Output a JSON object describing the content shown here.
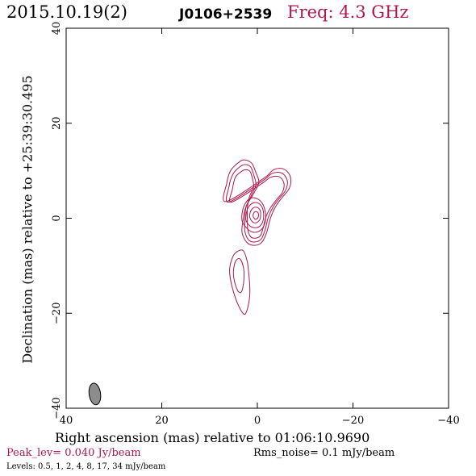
{
  "header": {
    "date": "2015.10.19(2)",
    "source": "J0106+2539",
    "freq": "Freq: 4.3 GHz"
  },
  "footer": {
    "peak": "Peak_lev=  0.040 Jy/beam",
    "rms": "Rms_noise=  0.1 mJy/beam",
    "levels": "Levels: 0.5,    1,    2,    4,    8,   17,   34 mJy/beam"
  },
  "colors": {
    "contour": "#b0184a",
    "beam_fill": "#8c8c8c",
    "frame": "#000000"
  },
  "chart_data": {
    "type": "contour",
    "xlabel": "Right ascension (mas) relative to 01:06:10.9690",
    "ylabel": "Declination (mas) relative to +25:39:30.495",
    "xlim": [
      40,
      -40
    ],
    "ylim": [
      -40,
      40
    ],
    "xticks": [
      40,
      20,
      0,
      -20,
      -40
    ],
    "xtick_labels": [
      "40",
      "20",
      "0",
      "−20",
      "−40"
    ],
    "yticks": [
      -40,
      -20,
      0,
      20,
      40
    ],
    "ytick_labels": [
      "−40",
      "−20",
      "0",
      "20",
      "40"
    ],
    "levels_mJy": [
      0.5,
      1,
      2,
      4,
      8,
      17,
      34
    ],
    "contours": [
      {
        "level": 0.5,
        "points": [
          [
            6.6,
            3.5
          ],
          [
            6.4,
            7.4
          ],
          [
            5.6,
            10.0
          ],
          [
            4.1,
            11.6
          ],
          [
            2.8,
            12.3
          ],
          [
            1.2,
            11.6
          ],
          [
            0.3,
            9.6
          ],
          [
            -0.3,
            7.5
          ],
          [
            0.9,
            5.0
          ],
          [
            2.4,
            2.4
          ],
          [
            3.0,
            -0.5
          ],
          [
            3.2,
            -3.0
          ],
          [
            2.2,
            -5.1
          ],
          [
            0.6,
            -5.7
          ],
          [
            -1.0,
            -5.0
          ],
          [
            -2.0,
            -2.8
          ],
          [
            -2.8,
            0.2
          ],
          [
            -3.9,
            2.6
          ],
          [
            -5.3,
            4.5
          ],
          [
            -6.5,
            6.0
          ],
          [
            -7.0,
            7.5
          ],
          [
            -6.7,
            9.2
          ],
          [
            -5.4,
            10.4
          ],
          [
            -3.4,
            10.2
          ],
          [
            -1.2,
            8.3
          ]
        ]
      },
      {
        "level": 1,
        "points": [
          [
            6.0,
            3.4
          ],
          [
            5.9,
            6.8
          ],
          [
            5.1,
            9.3
          ],
          [
            3.7,
            10.8
          ],
          [
            2.6,
            11.3
          ],
          [
            1.4,
            10.8
          ],
          [
            0.7,
            8.9
          ],
          [
            0.3,
            7.0
          ],
          [
            1.3,
            4.7
          ],
          [
            2.4,
            2.2
          ],
          [
            2.6,
            -0.6
          ],
          [
            2.6,
            -2.8
          ],
          [
            1.8,
            -4.6
          ],
          [
            0.5,
            -5.0
          ],
          [
            -0.8,
            -4.4
          ],
          [
            -1.6,
            -2.5
          ],
          [
            -2.3,
            0.2
          ],
          [
            -3.3,
            2.4
          ],
          [
            -4.6,
            4.2
          ],
          [
            -5.8,
            5.7
          ],
          [
            -6.3,
            7.3
          ],
          [
            -6.0,
            8.6
          ],
          [
            -4.9,
            9.6
          ],
          [
            -3.0,
            9.4
          ],
          [
            -1.0,
            7.8
          ]
        ]
      },
      {
        "level": 2,
        "points": [
          [
            5.4,
            3.4
          ],
          [
            5.2,
            6.2
          ],
          [
            4.6,
            8.6
          ],
          [
            3.4,
            9.8
          ],
          [
            2.4,
            10.2
          ],
          [
            1.5,
            9.8
          ],
          [
            1.0,
            8.2
          ],
          [
            0.8,
            6.6
          ],
          [
            1.7,
            4.4
          ],
          [
            2.1,
            2.1
          ],
          [
            2.1,
            -0.6
          ],
          [
            2.0,
            -2.4
          ],
          [
            1.4,
            -3.9
          ],
          [
            0.4,
            -4.2
          ],
          [
            -0.6,
            -3.7
          ],
          [
            -1.2,
            -2.1
          ],
          [
            -1.8,
            0.3
          ],
          [
            -2.8,
            2.3
          ],
          [
            -4.0,
            3.9
          ],
          [
            -5.2,
            5.4
          ],
          [
            -5.6,
            6.9
          ],
          [
            -5.3,
            8.0
          ],
          [
            -4.4,
            8.8
          ],
          [
            -2.7,
            8.6
          ],
          [
            -0.8,
            7.2
          ]
        ]
      },
      {
        "level": 4,
        "points": [
          [
            3.2,
            -0.5
          ],
          [
            3.0,
            2.0
          ],
          [
            2.2,
            3.6
          ],
          [
            1.2,
            4.3
          ],
          [
            0.0,
            4.1
          ],
          [
            -1.0,
            3.2
          ],
          [
            -1.6,
            1.6
          ],
          [
            -1.7,
            -0.3
          ],
          [
            -1.2,
            -1.9
          ],
          [
            -0.2,
            -2.8
          ],
          [
            1.0,
            -2.9
          ],
          [
            2.2,
            -2.1
          ]
        ]
      },
      {
        "level": 8,
        "points": [
          [
            2.4,
            -0.3
          ],
          [
            2.2,
            1.6
          ],
          [
            1.5,
            2.8
          ],
          [
            0.6,
            3.3
          ],
          [
            -0.3,
            3.1
          ],
          [
            -1.0,
            2.3
          ],
          [
            -1.3,
            1.0
          ],
          [
            -1.2,
            -0.5
          ],
          [
            -0.6,
            -1.6
          ],
          [
            0.3,
            -2.0
          ],
          [
            1.3,
            -1.8
          ],
          [
            2.0,
            -1.1
          ]
        ]
      },
      {
        "level": 17,
        "points": [
          [
            1.6,
            0.3
          ],
          [
            1.4,
            1.5
          ],
          [
            0.8,
            2.2
          ],
          [
            0.1,
            2.3
          ],
          [
            -0.5,
            1.8
          ],
          [
            -0.7,
            0.8
          ],
          [
            -0.5,
            -0.3
          ],
          [
            0.1,
            -0.9
          ],
          [
            0.8,
            -0.9
          ],
          [
            1.3,
            -0.4
          ]
        ]
      },
      {
        "level": 34,
        "points": [
          [
            0.9,
            0.5
          ],
          [
            0.7,
            1.2
          ],
          [
            0.2,
            1.4
          ],
          [
            -0.2,
            1.0
          ],
          [
            -0.2,
            0.3
          ],
          [
            0.2,
            -0.2
          ],
          [
            0.6,
            -0.1
          ]
        ]
      },
      {
        "level": 0.5,
        "points": [
          [
            3.0,
            -6.8
          ],
          [
            4.6,
            -7.3
          ],
          [
            5.4,
            -8.8
          ],
          [
            5.8,
            -10.8
          ],
          [
            5.6,
            -13.0
          ],
          [
            5.0,
            -15.5
          ],
          [
            4.2,
            -17.8
          ],
          [
            3.3,
            -19.6
          ],
          [
            2.6,
            -20.2
          ],
          [
            2.0,
            -18.8
          ],
          [
            1.6,
            -16.5
          ],
          [
            1.6,
            -14.0
          ],
          [
            1.8,
            -11.6
          ],
          [
            2.1,
            -9.2
          ]
        ]
      },
      {
        "level": 1,
        "points": [
          [
            3.6,
            -8.6
          ],
          [
            4.4,
            -8.8
          ],
          [
            4.9,
            -10.2
          ],
          [
            5.0,
            -12.0
          ],
          [
            4.6,
            -14.0
          ],
          [
            4.0,
            -15.4
          ],
          [
            3.4,
            -15.6
          ],
          [
            3.0,
            -14.4
          ],
          [
            2.8,
            -12.5
          ],
          [
            2.9,
            -10.4
          ]
        ]
      }
    ],
    "beam": {
      "x": 34,
      "y": -37,
      "major": 4.6,
      "minor": 2.4,
      "pa_deg": -8
    }
  }
}
